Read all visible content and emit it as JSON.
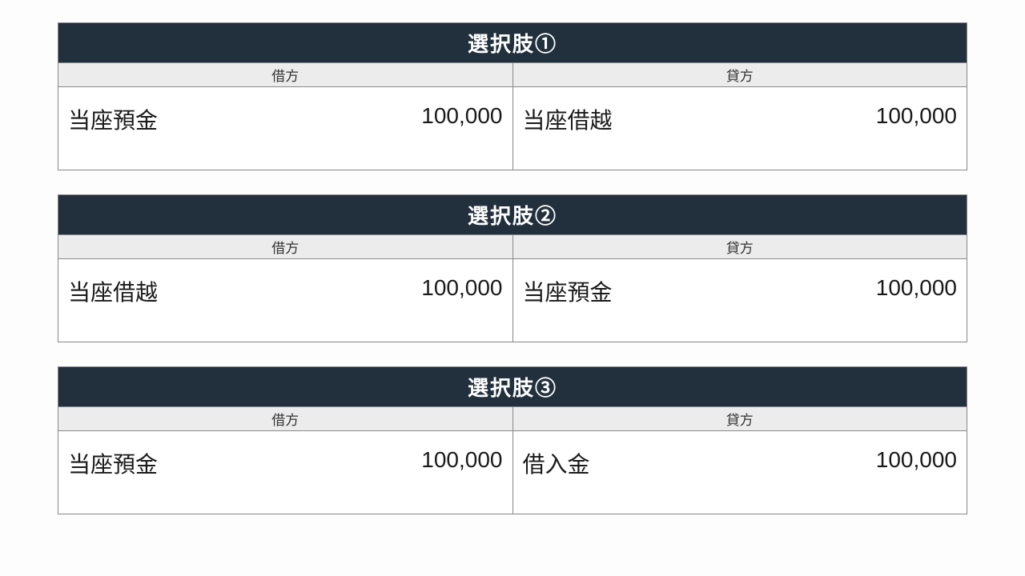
{
  "layout": {
    "background_color": "#fdfdfd",
    "table_border_color": "#888888",
    "title_bg": "#22303d",
    "title_color": "#ffffff",
    "header_bg": "#ececec",
    "header_color": "#333333",
    "cell_bg": "#ffffff",
    "title_fontsize": 26,
    "header_fontsize": 17,
    "cell_fontsize": 28
  },
  "column_headers": {
    "debit": "借方",
    "credit": "貸方"
  },
  "options": [
    {
      "title": "選択肢①",
      "debit": {
        "account": "当座預金",
        "amount": "100,000"
      },
      "credit": {
        "account": "当座借越",
        "amount": "100,000"
      }
    },
    {
      "title": "選択肢②",
      "debit": {
        "account": "当座借越",
        "amount": "100,000"
      },
      "credit": {
        "account": "当座預金",
        "amount": "100,000"
      }
    },
    {
      "title": "選択肢③",
      "debit": {
        "account": "当座預金",
        "amount": "100,000"
      },
      "credit": {
        "account": "借入金",
        "amount": "100,000"
      }
    }
  ]
}
